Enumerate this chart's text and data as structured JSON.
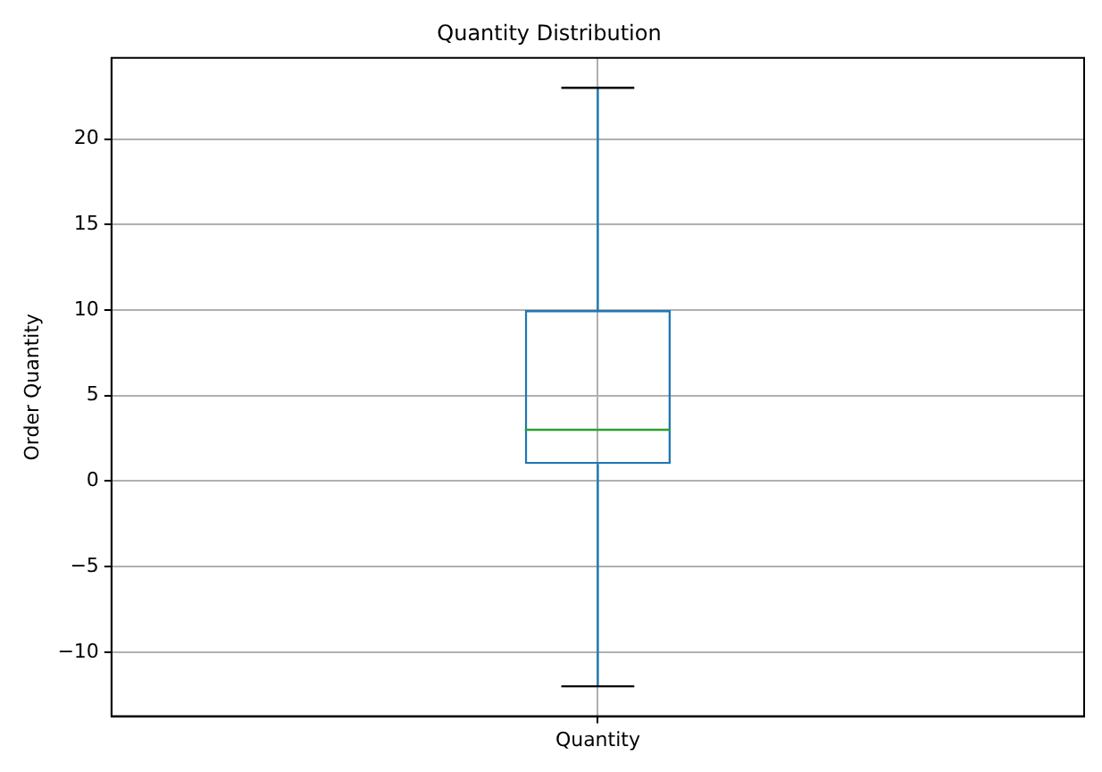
{
  "chart_data": {
    "type": "box",
    "title": "Quantity Distribution",
    "ylabel": "Order Quantity",
    "categories": [
      "Quantity"
    ],
    "boxes": [
      {
        "low": -12,
        "q1": 1,
        "median": 3,
        "q3": 10,
        "high": 23
      }
    ],
    "color": "#1f77b4",
    "ylim": [
      -13.75,
      24.75
    ],
    "yticks": [
      -10,
      -5,
      0,
      5,
      10,
      15,
      20
    ],
    "grid": true
  }
}
